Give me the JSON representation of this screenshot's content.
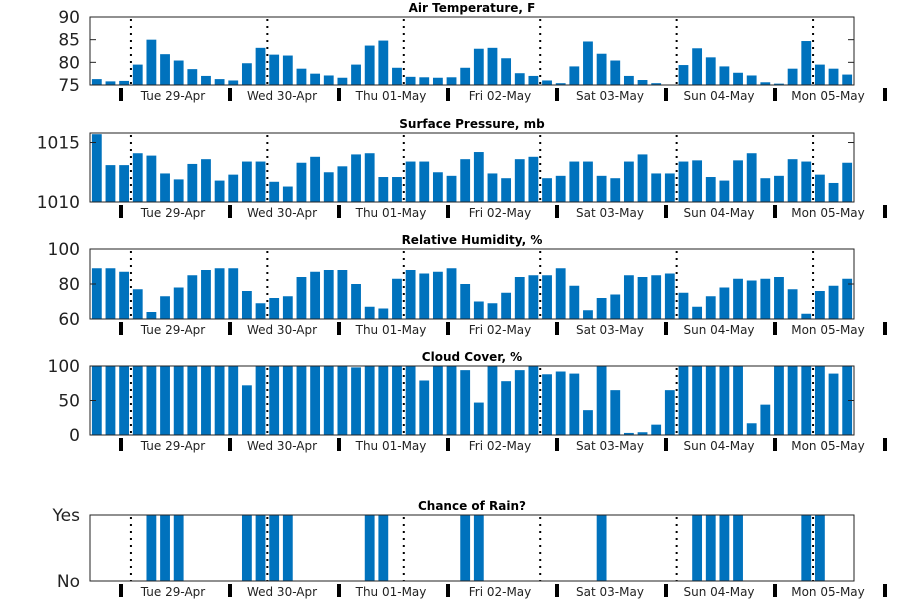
{
  "colors": {
    "bar": "#0072BD",
    "axis": "#222222",
    "separator": "#000000",
    "background": "#ffffff"
  },
  "day_labels": [
    "Tue 29-Apr",
    "Wed 30-Apr",
    "Thu 01-May",
    "Fri 02-May",
    "Sat 03-May",
    "Sun 04-May",
    "Mon 05-May"
  ],
  "chart_data": [
    {
      "type": "bar",
      "title": "Air Temperature, F",
      "ylim": [
        75,
        90
      ],
      "yticks": [
        75,
        80,
        85,
        90
      ],
      "ytick_labels": [
        "75",
        "80",
        "85",
        "90"
      ],
      "x_label_style": "daily date ticks with dotted day separators",
      "values": [
        76.3,
        75.8,
        75.9,
        79.5,
        85.0,
        81.8,
        80.4,
        78.5,
        77.0,
        76.3,
        76.0,
        79.8,
        83.2,
        81.7,
        81.5,
        78.6,
        77.5,
        77.1,
        76.6,
        79.5,
        83.7,
        84.8,
        78.8,
        76.8,
        76.7,
        76.6,
        76.7,
        78.8,
        83.0,
        83.2,
        80.9,
        77.6,
        77.0,
        76.0,
        75.4,
        79.1,
        84.6,
        81.9,
        80.4,
        77.0,
        76.1,
        75.4,
        75.1,
        79.4,
        83.1,
        81.1,
        79.1,
        77.7,
        77.1,
        75.6,
        75.3,
        78.6,
        84.7,
        79.5,
        78.6,
        77.3
      ]
    },
    {
      "type": "bar",
      "title": "Surface Pressure, mb",
      "ylim": [
        1010,
        1015.8
      ],
      "yticks": [
        1010,
        1015
      ],
      "ytick_labels": [
        "1010",
        "1015"
      ],
      "values": [
        1015.7,
        1013.1,
        1013.1,
        1014.1,
        1013.9,
        1012.4,
        1011.9,
        1013.2,
        1013.6,
        1011.8,
        1012.3,
        1013.4,
        1013.4,
        1011.7,
        1011.3,
        1013.3,
        1013.8,
        1012.5,
        1013.0,
        1014.0,
        1014.1,
        1012.1,
        1012.1,
        1013.4,
        1013.4,
        1012.5,
        1012.2,
        1013.6,
        1014.2,
        1012.4,
        1012.0,
        1013.6,
        1013.8,
        1012.0,
        1012.2,
        1013.4,
        1013.4,
        1012.2,
        1012.0,
        1013.4,
        1014.0,
        1012.4,
        1012.4,
        1013.4,
        1013.5,
        1012.1,
        1011.8,
        1013.5,
        1014.1,
        1012.0,
        1012.2,
        1013.6,
        1013.4,
        1012.3,
        1011.6,
        1013.3
      ]
    },
    {
      "type": "bar",
      "title": "Relative Humidity, %",
      "ylim": [
        60,
        100
      ],
      "yticks": [
        60,
        80,
        100
      ],
      "ytick_labels": [
        "60",
        "80",
        "100"
      ],
      "values": [
        89,
        89,
        87,
        77,
        64,
        73,
        78,
        85,
        88,
        89,
        89,
        76,
        69,
        72,
        73,
        84,
        87,
        88,
        88,
        80,
        67,
        66,
        83,
        88,
        86,
        87,
        89,
        80,
        70,
        69,
        75,
        84,
        85,
        85,
        89,
        79,
        65,
        72,
        74,
        85,
        84,
        85,
        86,
        75,
        67,
        73,
        78,
        83,
        82,
        83,
        84,
        77,
        63,
        76,
        79,
        83
      ]
    },
    {
      "type": "bar",
      "title": "Cloud Cover, %",
      "ylim": [
        0,
        100
      ],
      "yticks": [
        0,
        50,
        100
      ],
      "ytick_labels": [
        "0",
        "50",
        "100"
      ],
      "values": [
        100,
        100,
        100,
        100,
        100,
        100,
        100,
        100,
        100,
        100,
        100,
        72,
        100,
        100,
        100,
        100,
        100,
        100,
        100,
        98,
        100,
        100,
        100,
        100,
        79,
        100,
        100,
        94,
        47,
        100,
        78,
        94,
        100,
        88,
        92,
        89,
        36,
        100,
        65,
        3,
        4,
        15,
        65,
        100,
        100,
        100,
        100,
        100,
        17,
        44,
        100,
        100,
        100,
        100,
        89,
        100
      ]
    },
    {
      "type": "bar",
      "title": "Chance of Rain?",
      "ylim": [
        0,
        1
      ],
      "yticks": [
        0,
        1
      ],
      "ytick_labels": [
        "No",
        "Yes"
      ],
      "values": [
        0,
        0,
        0,
        0,
        1,
        1,
        1,
        0,
        0,
        0,
        0,
        1,
        1,
        1,
        1,
        0,
        0,
        0,
        0,
        0,
        1,
        1,
        0,
        0,
        0,
        0,
        0,
        1,
        1,
        0,
        0,
        0,
        0,
        0,
        0,
        0,
        0,
        1,
        0,
        0,
        0,
        0,
        0,
        0,
        1,
        1,
        1,
        1,
        0,
        0,
        0,
        0,
        1,
        1,
        0,
        0
      ]
    }
  ]
}
